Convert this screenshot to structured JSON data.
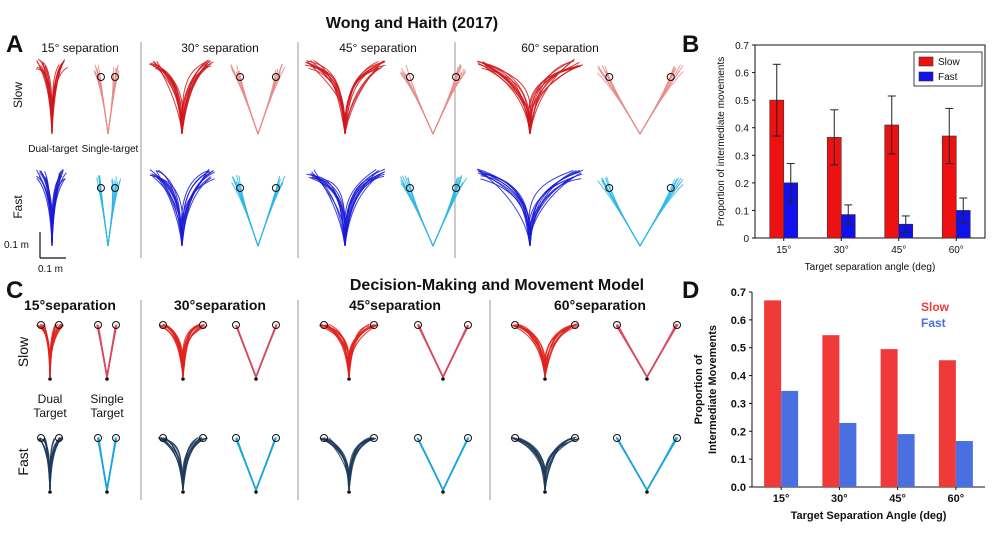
{
  "title_a": "Wong and Haith (2017)",
  "title_c": "Decision-Making and Movement Model",
  "panel_letters": [
    "A",
    "B",
    "C",
    "D"
  ],
  "separations_a": [
    "15° separation",
    "30° separation",
    "45° separation",
    "60° separation"
  ],
  "separations_c": [
    "15°separation",
    "30°separation",
    "45°separation",
    "60°separation"
  ],
  "row_labels": {
    "slow": "Slow",
    "fast": "Fast"
  },
  "condition_labels_a": {
    "dual": "Dual-target",
    "single": "Single-target"
  },
  "condition_labels_c": {
    "dual_1": "Dual",
    "dual_2": "Target",
    "single_1": "Single",
    "single_2": "Target"
  },
  "scale_bar": {
    "vertical": "0.1 m",
    "horizontal": "0.1 m"
  },
  "colors": {
    "slow_dual": "#d0161b",
    "slow_single": "#e98a86",
    "fast_dual": "#1a1ad6",
    "fast_single": "#2bb6e6",
    "model_slow_dual": "#e0211c",
    "model_slow_single": "#d94860",
    "model_fast_dual": "#1c3a5c",
    "model_fast_single": "#1aa3e0",
    "bar_slow_b": "#ee1111",
    "bar_fast_b": "#1111ee",
    "bar_slow_d": "#f03a3a",
    "bar_fast_d": "#4a6fe0"
  },
  "chart_data": [
    {
      "panel": "B",
      "type": "bar",
      "categories": [
        "15°",
        "30°",
        "45°",
        "60°"
      ],
      "series": [
        {
          "name": "Slow",
          "values": [
            0.5,
            0.365,
            0.41,
            0.37
          ],
          "errors": [
            0.13,
            0.1,
            0.105,
            0.1
          ]
        },
        {
          "name": "Fast",
          "values": [
            0.2,
            0.085,
            0.05,
            0.1
          ],
          "errors": [
            0.07,
            0.035,
            0.03,
            0.045
          ]
        }
      ],
      "xlabel": "Target separation angle (deg)",
      "ylabel": "Proportion of intermediate movements",
      "ylim": [
        0,
        0.7
      ],
      "yticks": [
        "0",
        "0.1",
        "0.2",
        "0.3",
        "0.4",
        "0.5",
        "0.6",
        "0.7"
      ],
      "legend": "top-right"
    },
    {
      "panel": "D",
      "type": "bar",
      "categories": [
        "15°",
        "30°",
        "45°",
        "60°"
      ],
      "series": [
        {
          "name": "Slow",
          "values": [
            0.67,
            0.545,
            0.495,
            0.455
          ]
        },
        {
          "name": "Fast",
          "values": [
            0.345,
            0.23,
            0.19,
            0.165
          ]
        }
      ],
      "xlabel": "Target Separation Angle (deg)",
      "ylabel_lines": [
        "Proportion of",
        "Intermediate Movements"
      ],
      "ylim": [
        0,
        0.7
      ],
      "yticks": [
        "0.0",
        "0.1",
        "0.2",
        "0.3",
        "0.4",
        "0.5",
        "0.6",
        "0.7"
      ],
      "legend": "top-right"
    }
  ]
}
